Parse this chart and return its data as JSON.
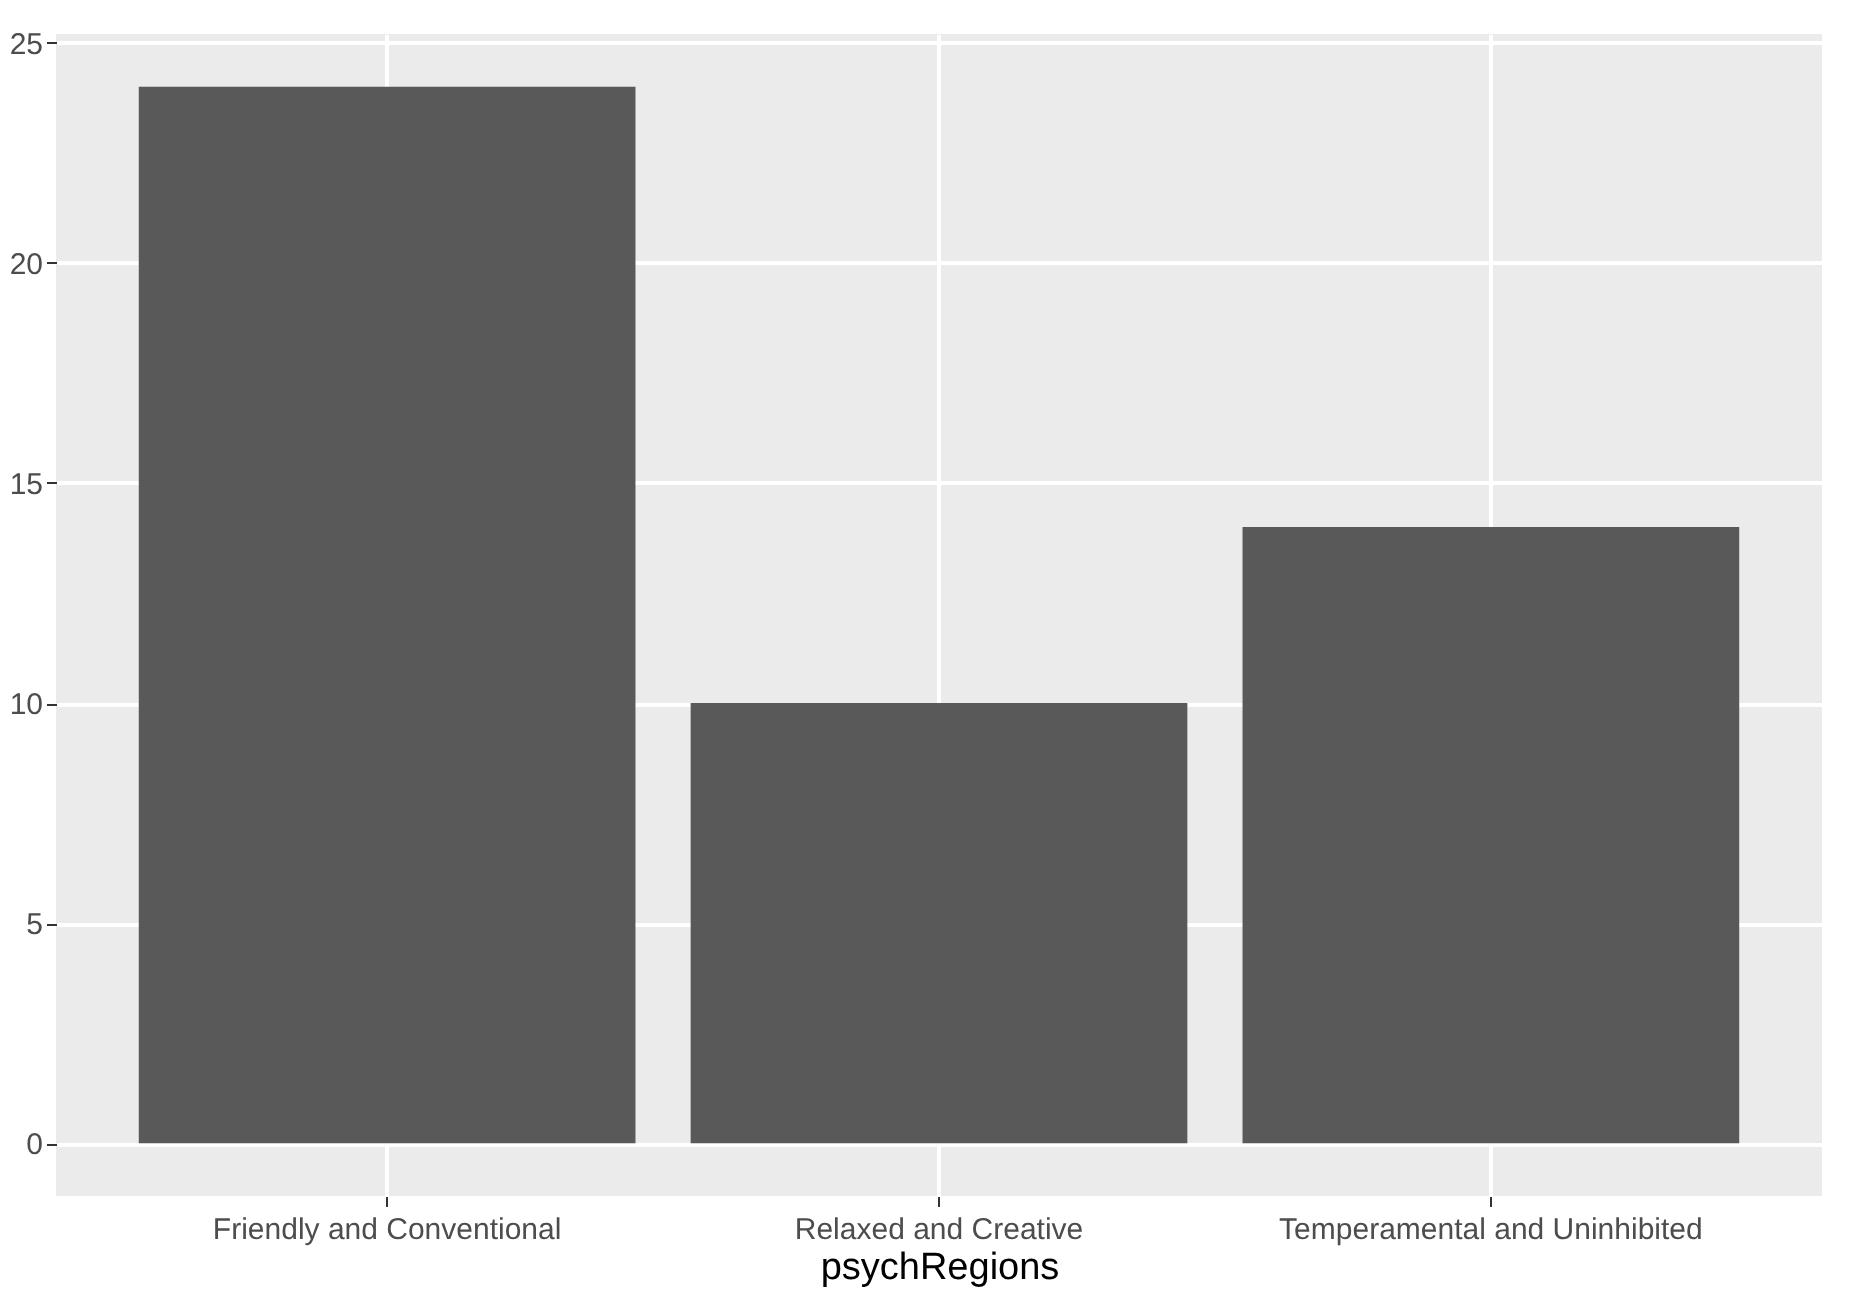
{
  "chart_data": {
    "type": "bar",
    "xlabel": "psychRegions",
    "categories": [
      "Friendly and Conventional",
      "Relaxed and Creative",
      "Temperamental and Uninhibited"
    ],
    "values": [
      24,
      10,
      14
    ],
    "color": "#595959",
    "ylim": [
      -1.2,
      25.2
    ],
    "yticks": [
      0,
      5,
      10,
      15,
      20,
      25
    ],
    "grid": true
  }
}
